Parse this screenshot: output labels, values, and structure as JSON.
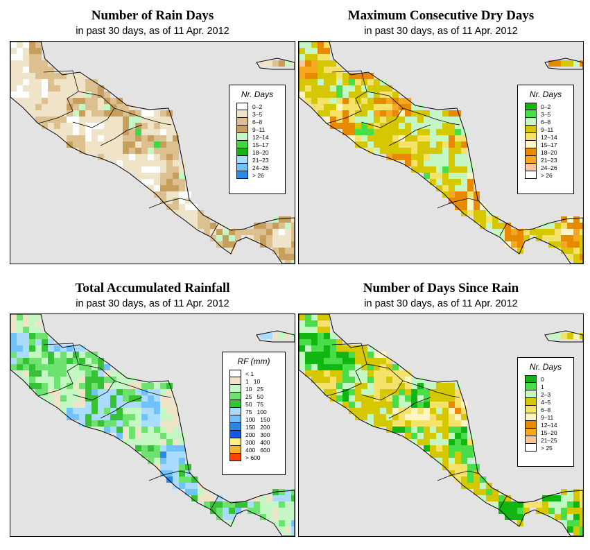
{
  "panels": [
    {
      "id": "rain-days",
      "title": "Number of Rain Days",
      "subtitle": "in past 30 days, as of  11 Apr. 2012",
      "legend": {
        "title": "Nr. Days",
        "items": [
          {
            "label": "0–2",
            "color": "#ffffff"
          },
          {
            "label": "3–5",
            "color": "#efe3c8"
          },
          {
            "label": "6–8",
            "color": "#dcc090"
          },
          {
            "label": "9–11",
            "color": "#c89e5c"
          },
          {
            "label": "12–14",
            "color": "#c4f7c4"
          },
          {
            "label": "15–17",
            "color": "#44d444"
          },
          {
            "label": "18–20",
            "color": "#16b216"
          },
          {
            "label": "21–23",
            "color": "#a9dcff"
          },
          {
            "label": "24–26",
            "color": "#73c0fb"
          },
          {
            "label": "> 26",
            "color": "#2b8be8"
          }
        ]
      }
    },
    {
      "id": "dry-days",
      "title": "Maximum Consecutive Dry Days",
      "subtitle": "in past 30 days, as of  11 Apr. 2012",
      "legend": {
        "title": "Nr. Days",
        "items": [
          {
            "label": "0–2",
            "color": "#11b611"
          },
          {
            "label": "3–5",
            "color": "#49dd49"
          },
          {
            "label": "6–8",
            "color": "#c4f7c4"
          },
          {
            "label": "9–11",
            "color": "#d6c800"
          },
          {
            "label": "12–14",
            "color": "#f4e26a"
          },
          {
            "label": "15–17",
            "color": "#fcf6c4"
          },
          {
            "label": "18–20",
            "color": "#e78a00"
          },
          {
            "label": "21–23",
            "color": "#f6a823"
          },
          {
            "label": "24–26",
            "color": "#f8c89c"
          },
          {
            "label": "> 26",
            "color": "#ffffff"
          }
        ]
      }
    },
    {
      "id": "rainfall",
      "title": "Total Accumulated Rainfall",
      "subtitle": "in past 30 days, as of  11 Apr. 2012",
      "legend": {
        "title": "RF (mm)",
        "items": [
          {
            "label": "< 1",
            "color": "#ffffff"
          },
          {
            "label": "1   10",
            "color": "#efe3c8"
          },
          {
            "label": "10   25",
            "color": "#c4f7c4"
          },
          {
            "label": "25   50",
            "color": "#6ee26e"
          },
          {
            "label": "50   75",
            "color": "#36c236"
          },
          {
            "label": "75   100",
            "color": "#a9dcff"
          },
          {
            "label": "100   150",
            "color": "#72c2fa"
          },
          {
            "label": "150   200",
            "color": "#2b86ec"
          },
          {
            "label": "200   300",
            "color": "#1656e6"
          },
          {
            "label": "300   400",
            "color": "#fcf088"
          },
          {
            "label": "400   600",
            "color": "#f6b62a"
          },
          {
            "label": "> 600",
            "color": "#ff4400"
          }
        ]
      }
    },
    {
      "id": "since-rain",
      "title": "Number of Days Since Rain",
      "subtitle": "in past 30 days, as of  11 Apr. 2012",
      "legend": {
        "title": "Nr. Days",
        "items": [
          {
            "label": "0",
            "color": "#11b611"
          },
          {
            "label": "1",
            "color": "#49dd49"
          },
          {
            "label": "2–3",
            "color": "#c4f7c4"
          },
          {
            "label": "4–5",
            "color": "#d6c800"
          },
          {
            "label": "6–8",
            "color": "#f4e26a"
          },
          {
            "label": "9–11",
            "color": "#fcf6c4"
          },
          {
            "label": "12–14",
            "color": "#e78a00"
          },
          {
            "label": "15–20",
            "color": "#f6a823"
          },
          {
            "label": "21–25",
            "color": "#f8c89c"
          },
          {
            "label": "> 25",
            "color": "#ffffff"
          }
        ]
      }
    }
  ]
}
